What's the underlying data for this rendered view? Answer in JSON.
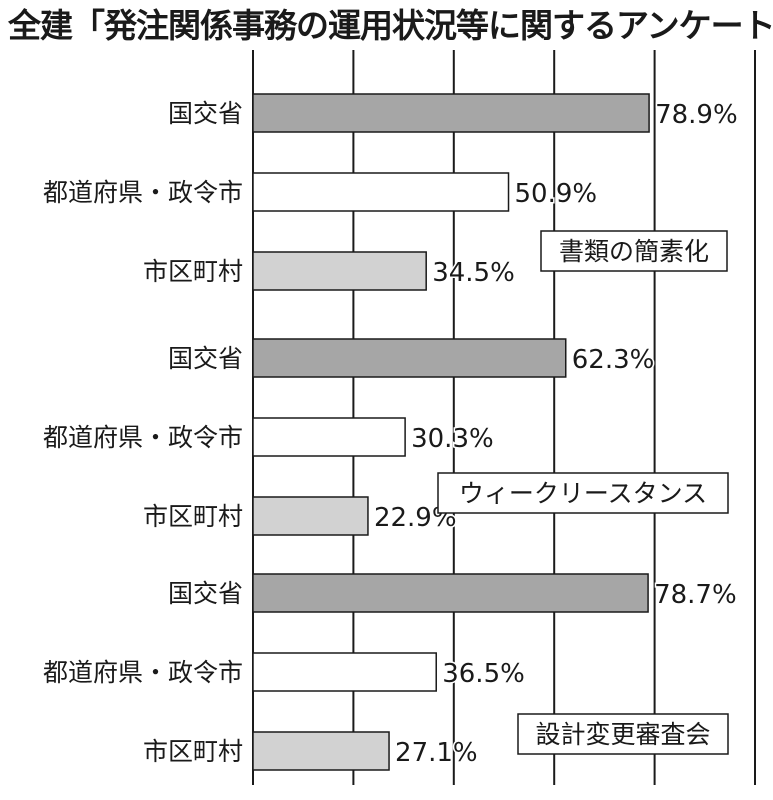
{
  "chart_data": {
    "type": "bar",
    "orientation": "horizontal",
    "title": "全建「発注関係事務の運用状況等に関するアンケート」",
    "categories": [
      "国交省",
      "都道府県・政令市",
      "市区町村"
    ],
    "xlim": [
      0,
      100
    ],
    "grid": true,
    "colors": {
      "国交省": "#a6a6a6",
      "都道府県・政令市": "#ffffff",
      "市区町村": "#d2d2d2"
    },
    "groups": [
      {
        "label": "書類の簡素化",
        "values": [
          78.9,
          50.9,
          34.5
        ],
        "value_labels": [
          "78.9%",
          "50.9%",
          "34.5%"
        ]
      },
      {
        "label": "ウィークリースタンス",
        "values": [
          62.3,
          30.3,
          22.9
        ],
        "value_labels": [
          "62.3%",
          "30.3%",
          "22.9%"
        ]
      },
      {
        "label": "設計変更審査会",
        "values": [
          78.7,
          36.5,
          27.1
        ],
        "value_labels": [
          "78.7%",
          "36.5%",
          "27.1%"
        ]
      }
    ]
  }
}
